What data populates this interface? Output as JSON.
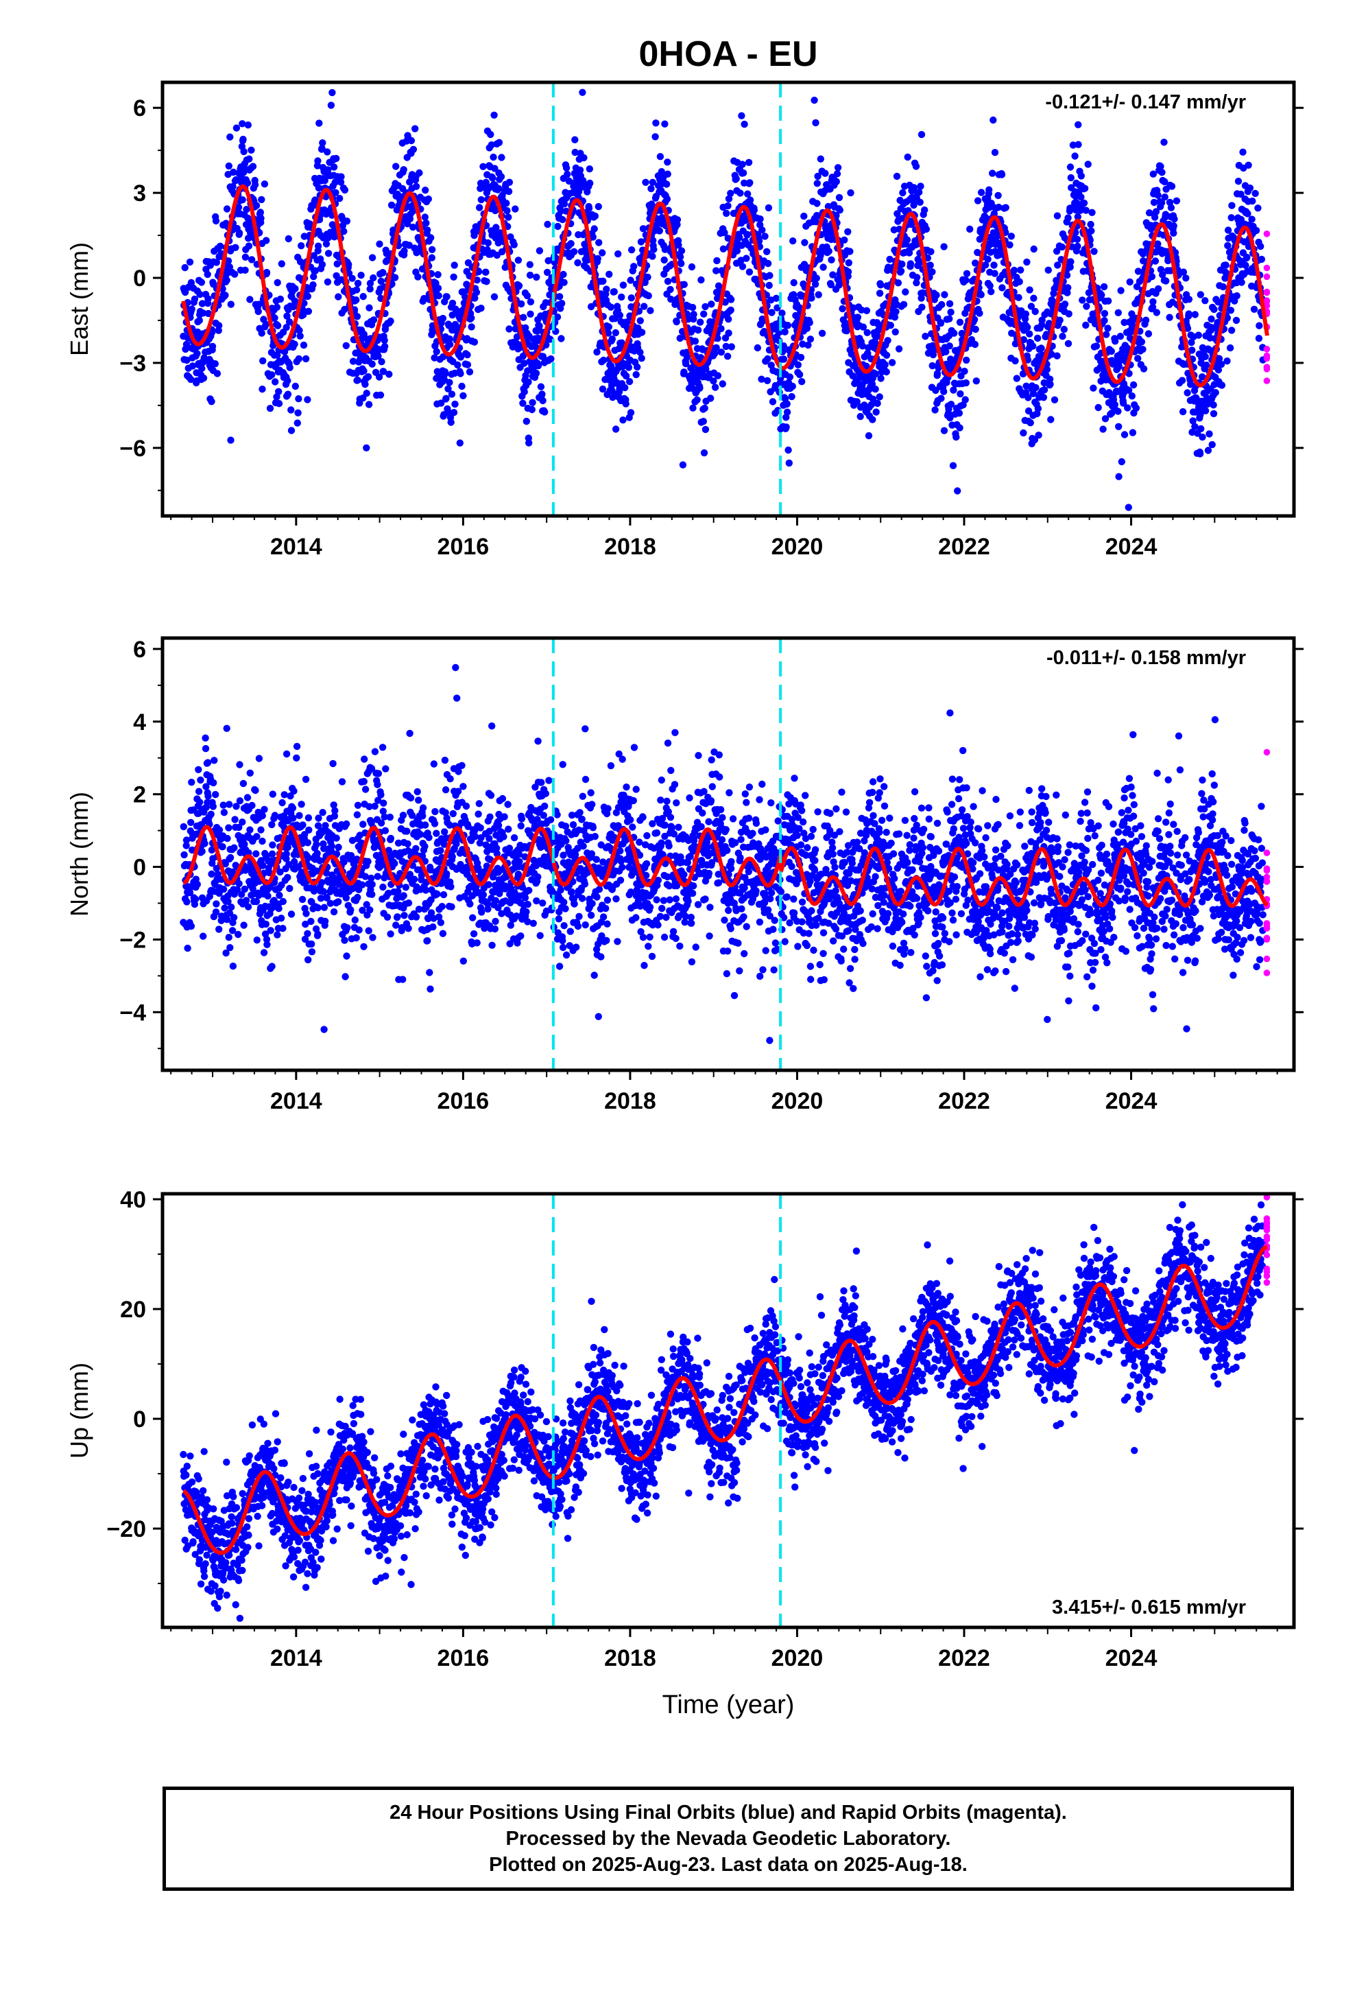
{
  "title": "0HOA - EU",
  "colors": {
    "final": "#0000ff",
    "rapid": "#ff00ff",
    "model": "#ff0000",
    "offset": "#00e5ee",
    "frame": "#000000"
  },
  "xlabel": "Time (year)",
  "chart_data": [
    {
      "type": "scatter",
      "component": "East",
      "ylabel": "East (mm)",
      "xlim": [
        2012.4,
        2025.95
      ],
      "ylim": [
        -8.4,
        6.9
      ],
      "yticks": [
        -6,
        -3,
        0,
        3,
        6
      ],
      "xticks": [
        2014,
        2016,
        2018,
        2020,
        2022,
        2024
      ],
      "offsets": [
        2017.08,
        2019.8
      ],
      "rate": "-0.121+/- 0.147 mm/yr",
      "rate_pos": "top-right",
      "data_start": 2012.65,
      "final_end": 2025.58,
      "data_end": 2025.63,
      "model": {
        "mean": 0.3,
        "trend": -0.121,
        "annual_amp": 2.8,
        "annual_peak": 2012.35,
        "semiannual_amp": 0.25,
        "semiannual_peak": 2012.4,
        "jumps": [
          0,
          0
        ]
      },
      "scatter_sd": 1.2
    },
    {
      "type": "scatter",
      "component": "North",
      "ylabel": "North (mm)",
      "xlim": [
        2012.4,
        2025.95
      ],
      "ylim": [
        -5.6,
        6.3
      ],
      "yticks": [
        -4,
        -2,
        0,
        2,
        4,
        6
      ],
      "xticks": [
        2014,
        2016,
        2018,
        2020,
        2022,
        2024
      ],
      "offsets": [
        2017.08,
        2019.8
      ],
      "rate": "-0.011+/- 0.158 mm/yr",
      "rate_pos": "top-right",
      "data_start": 2012.65,
      "final_end": 2025.58,
      "data_end": 2025.63,
      "model": {
        "mean": 0.15,
        "trend": -0.011,
        "annual_amp": 0.4,
        "annual_peak": 2012.93,
        "semiannual_amp": 0.55,
        "semiannual_peak": 2012.93,
        "jumps": [
          0,
          -0.5
        ]
      },
      "scatter_sd": 1.0
    },
    {
      "type": "scatter",
      "component": "Up",
      "ylabel": "Up (mm)",
      "xlim": [
        2012.4,
        2025.95
      ],
      "ylim": [
        -38,
        41
      ],
      "yticks": [
        -20,
        0,
        20,
        40
      ],
      "xticks": [
        2014,
        2016,
        2018,
        2020,
        2022,
        2024
      ],
      "offsets": [
        2017.08,
        2019.8
      ],
      "rate": "3.415+/- 0.615 mm/yr",
      "rate_pos": "bottom-right",
      "data_start": 2012.65,
      "final_end": 2025.58,
      "data_end": 2025.63,
      "model": {
        "mean": -20,
        "trend": 3.415,
        "annual_amp": 6.5,
        "annual_peak": 2012.62,
        "semiannual_amp": 0.5,
        "semiannual_peak": 2012.62,
        "jumps": [
          0,
          0
        ]
      },
      "scatter_sd": 4.5
    }
  ],
  "footer": {
    "line1": "24 Hour Positions Using Final Orbits (blue) and Rapid Orbits (magenta).",
    "line2": "Processed by the Nevada Geodetic Laboratory.",
    "line3": "Plotted on 2025-Aug-23. Last data on 2025-Aug-18."
  }
}
